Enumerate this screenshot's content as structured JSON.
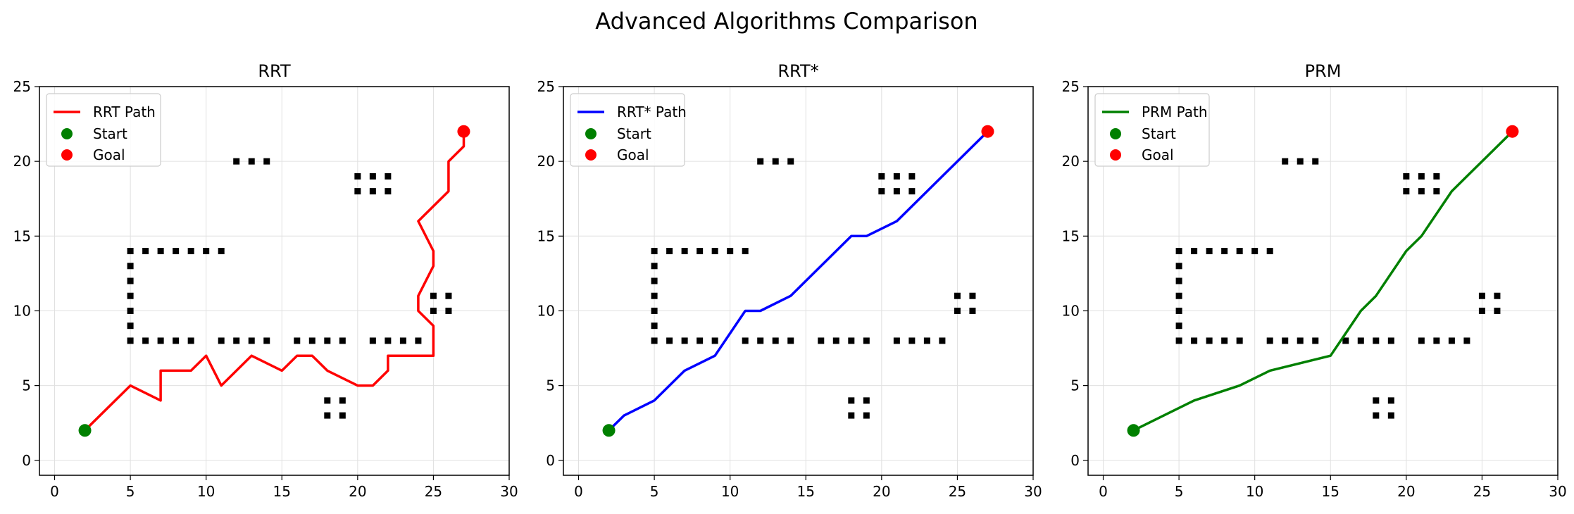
{
  "figure": {
    "suptitle": "Advanced Algorithms Comparison"
  },
  "colors": {
    "start": "#008000",
    "goal": "#ff0000",
    "obstacle": "#000000",
    "grid": "#e0e0e0"
  },
  "legend_placement": "upper-left",
  "obstacles": [
    [
      5,
      14
    ],
    [
      6,
      14
    ],
    [
      7,
      14
    ],
    [
      8,
      14
    ],
    [
      9,
      14
    ],
    [
      10,
      14
    ],
    [
      11,
      14
    ],
    [
      5,
      13
    ],
    [
      5,
      12
    ],
    [
      5,
      11
    ],
    [
      5,
      10
    ],
    [
      5,
      9
    ],
    [
      5,
      8
    ],
    [
      6,
      8
    ],
    [
      7,
      8
    ],
    [
      8,
      8
    ],
    [
      9,
      8
    ],
    [
      11,
      8
    ],
    [
      12,
      8
    ],
    [
      13,
      8
    ],
    [
      14,
      8
    ],
    [
      16,
      8
    ],
    [
      17,
      8
    ],
    [
      18,
      8
    ],
    [
      19,
      8
    ],
    [
      21,
      8
    ],
    [
      22,
      8
    ],
    [
      23,
      8
    ],
    [
      24,
      8
    ],
    [
      12,
      20
    ],
    [
      13,
      20
    ],
    [
      14,
      20
    ],
    [
      20,
      19
    ],
    [
      21,
      19
    ],
    [
      22,
      19
    ],
    [
      20,
      18
    ],
    [
      21,
      18
    ],
    [
      22,
      18
    ],
    [
      25,
      11
    ],
    [
      26,
      11
    ],
    [
      25,
      10
    ],
    [
      26,
      10
    ],
    [
      18,
      4
    ],
    [
      19,
      4
    ],
    [
      18,
      3
    ],
    [
      19,
      3
    ]
  ],
  "chart_data": [
    {
      "type": "line",
      "title": "RRT",
      "xlim": [
        -1,
        30
      ],
      "ylim": [
        -1,
        25
      ],
      "xticks": [
        0,
        5,
        10,
        15,
        20,
        25,
        30
      ],
      "yticks": [
        0,
        5,
        10,
        15,
        20,
        25
      ],
      "grid": true,
      "legend": [
        "RRT Path",
        "Start",
        "Goal"
      ],
      "path_color": "#ff0000",
      "path": [
        [
          2,
          2
        ],
        [
          5,
          5
        ],
        [
          7,
          4
        ],
        [
          7,
          6
        ],
        [
          9,
          6
        ],
        [
          10,
          7
        ],
        [
          11,
          5
        ],
        [
          13,
          7
        ],
        [
          15,
          6
        ],
        [
          16,
          7
        ],
        [
          17,
          7
        ],
        [
          18,
          6
        ],
        [
          20,
          5
        ],
        [
          21,
          5
        ],
        [
          22,
          6
        ],
        [
          22,
          7
        ],
        [
          25,
          7
        ],
        [
          25,
          9
        ],
        [
          24,
          10
        ],
        [
          24,
          11
        ],
        [
          25,
          13
        ],
        [
          25,
          14
        ],
        [
          24,
          16
        ],
        [
          26,
          18
        ],
        [
          26,
          20
        ],
        [
          27,
          21
        ],
        [
          27,
          22
        ]
      ],
      "start": [
        2,
        2
      ],
      "goal": [
        27,
        22
      ]
    },
    {
      "type": "line",
      "title": "RRT*",
      "xlim": [
        -1,
        30
      ],
      "ylim": [
        -1,
        25
      ],
      "xticks": [
        0,
        5,
        10,
        15,
        20,
        25,
        30
      ],
      "yticks": [
        0,
        5,
        10,
        15,
        20,
        25
      ],
      "grid": true,
      "legend": [
        "RRT* Path",
        "Start",
        "Goal"
      ],
      "path_color": "#0000ff",
      "path": [
        [
          2,
          2
        ],
        [
          3,
          3
        ],
        [
          5,
          4
        ],
        [
          7,
          6
        ],
        [
          9,
          7
        ],
        [
          11,
          10
        ],
        [
          12,
          10
        ],
        [
          14,
          11
        ],
        [
          18,
          15
        ],
        [
          19,
          15
        ],
        [
          21,
          16
        ],
        [
          27,
          22
        ]
      ],
      "start": [
        2,
        2
      ],
      "goal": [
        27,
        22
      ]
    },
    {
      "type": "line",
      "title": "PRM",
      "xlim": [
        -1,
        30
      ],
      "ylim": [
        -1,
        25
      ],
      "xticks": [
        0,
        5,
        10,
        15,
        20,
        25,
        30
      ],
      "yticks": [
        0,
        5,
        10,
        15,
        20,
        25
      ],
      "grid": true,
      "legend": [
        "PRM Path",
        "Start",
        "Goal"
      ],
      "path_color": "#008000",
      "path": [
        [
          2,
          2
        ],
        [
          6,
          4
        ],
        [
          9,
          5
        ],
        [
          11,
          6
        ],
        [
          15,
          7
        ],
        [
          17,
          10
        ],
        [
          18,
          11
        ],
        [
          20,
          14
        ],
        [
          21,
          15
        ],
        [
          23,
          18
        ],
        [
          27,
          22
        ]
      ],
      "start": [
        2,
        2
      ],
      "goal": [
        27,
        22
      ]
    }
  ]
}
